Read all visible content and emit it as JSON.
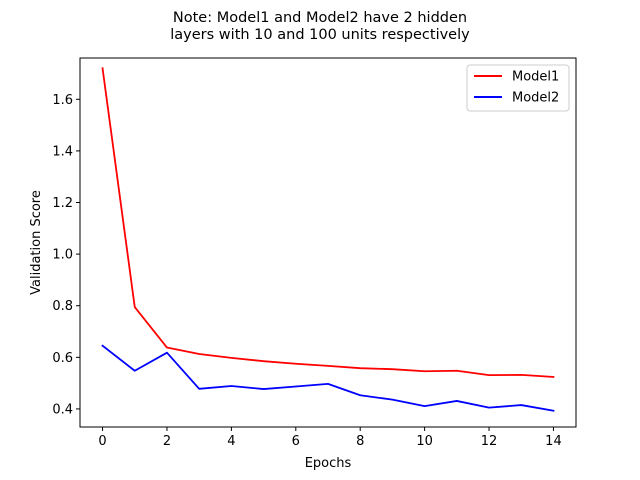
{
  "chart_data": {
    "type": "line",
    "title_lines": [
      "Note: Model1 and Model2 have 2 hidden",
      "layers with 10 and 100 units respectively"
    ],
    "xlabel": "Epochs",
    "ylabel": "Validation Score",
    "xlim": [
      -0.7,
      14.7
    ],
    "ylim": [
      0.33,
      1.76
    ],
    "xticks": [
      0,
      2,
      4,
      6,
      8,
      10,
      12,
      14
    ],
    "yticks": [
      0.4,
      0.6,
      0.8,
      1.0,
      1.2,
      1.4,
      1.6
    ],
    "ytick_labels": [
      "0.4",
      "0.6",
      "0.8",
      "1.0",
      "1.2",
      "1.4",
      "1.6"
    ],
    "x": [
      0,
      1,
      2,
      3,
      4,
      5,
      6,
      7,
      8,
      9,
      10,
      11,
      12,
      13,
      14
    ],
    "series": [
      {
        "name": "Model1",
        "color": "#ff0000",
        "values": [
          1.72,
          0.795,
          0.638,
          0.613,
          0.598,
          0.585,
          0.575,
          0.567,
          0.558,
          0.554,
          0.546,
          0.548,
          0.531,
          0.532,
          0.524
        ]
      },
      {
        "name": "Model2",
        "color": "#0000ff",
        "values": [
          0.645,
          0.548,
          0.618,
          0.478,
          0.489,
          0.477,
          0.487,
          0.497,
          0.453,
          0.436,
          0.411,
          0.431,
          0.405,
          0.415,
          0.393
        ]
      }
    ],
    "legend_position": "top-right",
    "grid": false
  }
}
